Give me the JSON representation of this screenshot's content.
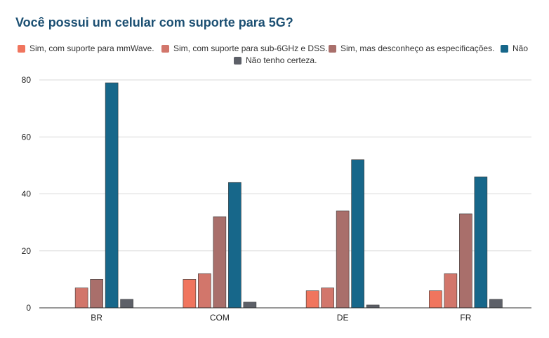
{
  "chart_data": {
    "type": "bar",
    "title": "Você possui um celular com suporte para 5G?",
    "xlabel": "",
    "ylabel": "",
    "categories": [
      "BR",
      "COM",
      "DE",
      "FR"
    ],
    "ylim": [
      0,
      80
    ],
    "yticks": [
      0,
      20,
      40,
      60,
      80
    ],
    "grid": true,
    "legend_position": "top",
    "series": [
      {
        "name": "Sim, com suporte para mmWave.",
        "color": "#f0755e",
        "values": [
          0,
          10,
          6,
          6
        ]
      },
      {
        "name": "Sim, com suporte para sub-6GHz e DSS.",
        "color": "#d2766b",
        "values": [
          7,
          12,
          7,
          12
        ]
      },
      {
        "name": "Sim, mas desconheço as especificações.",
        "color": "#a96f6b",
        "values": [
          10,
          32,
          34,
          33
        ]
      },
      {
        "name": "Não",
        "color": "#17678a",
        "values": [
          79,
          44,
          52,
          46
        ]
      },
      {
        "name": "Não tenho certeza.",
        "color": "#5d6068",
        "values": [
          3,
          2,
          1,
          3
        ]
      }
    ]
  }
}
